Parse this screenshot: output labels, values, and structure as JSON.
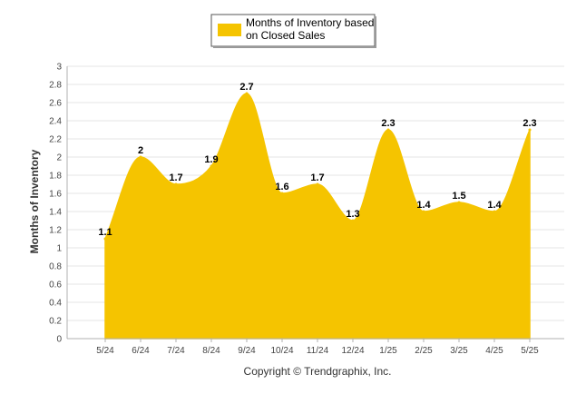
{
  "chart_data": {
    "type": "area",
    "categories": [
      "5/24",
      "6/24",
      "7/24",
      "8/24",
      "9/24",
      "10/24",
      "11/24",
      "12/24",
      "1/25",
      "2/25",
      "3/25",
      "4/25",
      "5/25"
    ],
    "series": [
      {
        "name": "Months of Inventory based on Closed Sales",
        "values": [
          1.1,
          2,
          1.7,
          1.9,
          2.7,
          1.6,
          1.7,
          1.3,
          2.3,
          1.4,
          1.5,
          1.4,
          2.3
        ]
      }
    ],
    "data_labels": [
      "1.1",
      "2",
      "1.7",
      "1.9",
      "2.7",
      "1.6",
      "1.7",
      "1.3",
      "2.3",
      "1.4",
      "1.5",
      "1.4",
      "2.3"
    ],
    "ylabel": "Months of Inventory",
    "ylim": [
      0,
      3
    ],
    "yticks": [
      "0",
      "0.2",
      "0.4",
      "0.6",
      "0.8",
      "1",
      "1.2",
      "1.4",
      "1.6",
      "1.8",
      "2",
      "2.2",
      "2.4",
      "2.6",
      "2.8",
      "3"
    ],
    "grid": true,
    "legend_position": "top-center",
    "legend_lines": [
      "Months of Inventory based",
      "on Closed Sales"
    ],
    "footer": "Copyright © Trendgraphix, Inc.",
    "colors": {
      "fill": "#F5C400",
      "grid": "#E6E6E6",
      "axis": "#B0B0B0"
    }
  }
}
